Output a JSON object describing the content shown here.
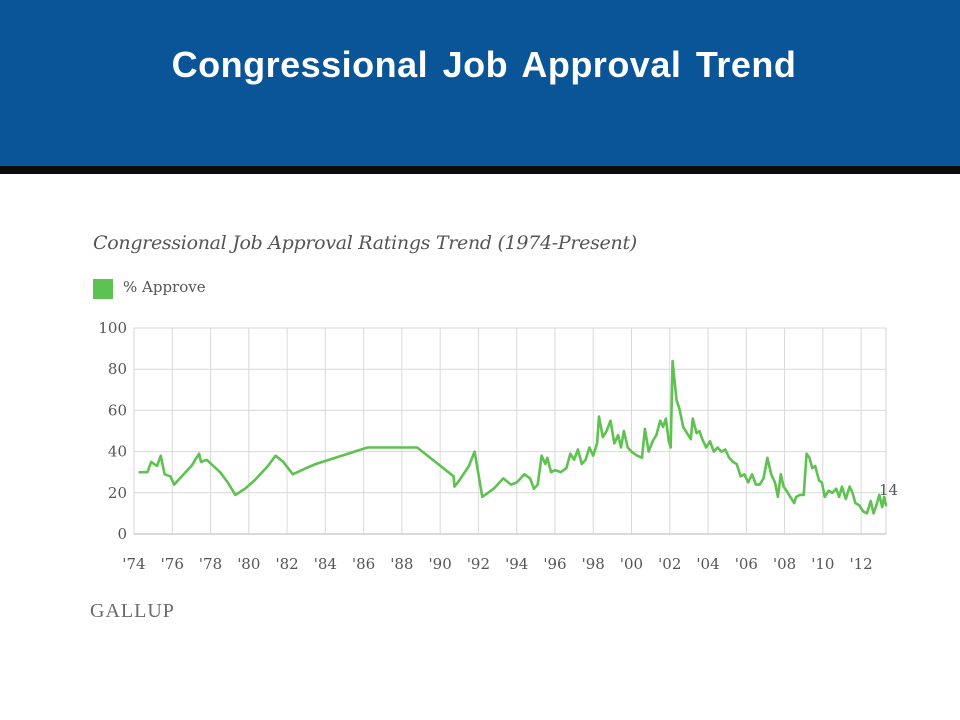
{
  "slide": {
    "title": "Congressional Job Approval Trend",
    "colors": {
      "banner": "#0a5597",
      "rule": "#0b0b0b"
    }
  },
  "logo": {
    "text": "GALLUP"
  },
  "chart_data": {
    "type": "line",
    "title": "Congressional Job Approval Ratings Trend (1974-Present)",
    "xlabel": "",
    "ylabel": "",
    "xlim": [
      1974,
      2013.3
    ],
    "ylim": [
      0,
      100
    ],
    "y_ticks": [
      0,
      20,
      40,
      60,
      80,
      100
    ],
    "x_ticks": [
      {
        "year": 1974,
        "label": "'74"
      },
      {
        "year": 1976,
        "label": "'76"
      },
      {
        "year": 1978,
        "label": "'78"
      },
      {
        "year": 1980,
        "label": "'80"
      },
      {
        "year": 1982,
        "label": "'82"
      },
      {
        "year": 1984,
        "label": "'84"
      },
      {
        "year": 1986,
        "label": "'86"
      },
      {
        "year": 1988,
        "label": "'88"
      },
      {
        "year": 1990,
        "label": "'90"
      },
      {
        "year": 1992,
        "label": "'92"
      },
      {
        "year": 1994,
        "label": "'94"
      },
      {
        "year": 1996,
        "label": "'96"
      },
      {
        "year": 1998,
        "label": "'98"
      },
      {
        "year": 2000,
        "label": "'00"
      },
      {
        "year": 2002,
        "label": "'02"
      },
      {
        "year": 2004,
        "label": "'04"
      },
      {
        "year": 2006,
        "label": "'06"
      },
      {
        "year": 2008,
        "label": "'08"
      },
      {
        "year": 2010,
        "label": "'10"
      },
      {
        "year": 2012,
        "label": "'12"
      }
    ],
    "grid": true,
    "legend_position": "top-left",
    "series": [
      {
        "name": "% Approve",
        "color": "#5ec251",
        "points": [
          [
            1974.3,
            30
          ],
          [
            1974.7,
            30
          ],
          [
            1974.9,
            35
          ],
          [
            1975.2,
            33
          ],
          [
            1975.4,
            38
          ],
          [
            1975.6,
            29
          ],
          [
            1975.9,
            28
          ],
          [
            1976.1,
            24
          ],
          [
            1976.5,
            28
          ],
          [
            1977.0,
            33
          ],
          [
            1977.4,
            39
          ],
          [
            1977.5,
            35
          ],
          [
            1977.8,
            36
          ],
          [
            1978.5,
            30
          ],
          [
            1978.9,
            25
          ],
          [
            1979.3,
            19
          ],
          [
            1979.8,
            22
          ],
          [
            1980.3,
            26
          ],
          [
            1981.0,
            33
          ],
          [
            1981.4,
            38
          ],
          [
            1981.8,
            35
          ],
          [
            1982.3,
            29
          ],
          [
            1983.0,
            32
          ],
          [
            1983.5,
            34
          ],
          [
            1986.2,
            42
          ],
          [
            1988.8,
            42
          ],
          [
            1990.7,
            28
          ],
          [
            1990.75,
            23
          ],
          [
            1991.0,
            26
          ],
          [
            1991.5,
            33
          ],
          [
            1991.8,
            40
          ],
          [
            1992.2,
            18
          ],
          [
            1992.8,
            22
          ],
          [
            1993.3,
            27
          ],
          [
            1993.7,
            24
          ],
          [
            1994.0,
            25
          ],
          [
            1994.4,
            29
          ],
          [
            1994.7,
            27
          ],
          [
            1994.9,
            22
          ],
          [
            1995.1,
            24
          ],
          [
            1995.3,
            38
          ],
          [
            1995.5,
            34
          ],
          [
            1995.6,
            37
          ],
          [
            1995.8,
            30
          ],
          [
            1996.0,
            31
          ],
          [
            1996.3,
            30
          ],
          [
            1996.6,
            32
          ],
          [
            1996.8,
            39
          ],
          [
            1997.0,
            36
          ],
          [
            1997.2,
            41
          ],
          [
            1997.4,
            34
          ],
          [
            1997.6,
            36
          ],
          [
            1997.8,
            42
          ],
          [
            1998.0,
            38
          ],
          [
            1998.2,
            44
          ],
          [
            1998.3,
            57
          ],
          [
            1998.5,
            47
          ],
          [
            1998.7,
            50
          ],
          [
            1998.9,
            55
          ],
          [
            1999.1,
            44
          ],
          [
            1999.3,
            48
          ],
          [
            1999.45,
            42
          ],
          [
            1999.6,
            50
          ],
          [
            1999.8,
            42
          ],
          [
            2000.0,
            40
          ],
          [
            2000.3,
            38
          ],
          [
            2000.55,
            37
          ],
          [
            2000.7,
            51
          ],
          [
            2000.9,
            40
          ],
          [
            2001.1,
            45
          ],
          [
            2001.3,
            48
          ],
          [
            2001.5,
            55
          ],
          [
            2001.65,
            52
          ],
          [
            2001.8,
            56
          ],
          [
            2001.95,
            45
          ],
          [
            2002.05,
            42
          ],
          [
            2002.15,
            84
          ],
          [
            2002.35,
            65
          ],
          [
            2002.5,
            61
          ],
          [
            2002.7,
            52
          ],
          [
            2002.9,
            49
          ],
          [
            2003.1,
            46
          ],
          [
            2003.2,
            56
          ],
          [
            2003.4,
            49
          ],
          [
            2003.55,
            50
          ],
          [
            2003.7,
            46
          ],
          [
            2003.9,
            42
          ],
          [
            2004.1,
            45
          ],
          [
            2004.3,
            40
          ],
          [
            2004.5,
            42
          ],
          [
            2004.7,
            40
          ],
          [
            2004.9,
            41
          ],
          [
            2005.1,
            37
          ],
          [
            2005.3,
            35
          ],
          [
            2005.5,
            34
          ],
          [
            2005.7,
            28
          ],
          [
            2005.9,
            29
          ],
          [
            2006.1,
            25
          ],
          [
            2006.3,
            29
          ],
          [
            2006.5,
            24
          ],
          [
            2006.7,
            24
          ],
          [
            2006.9,
            27
          ],
          [
            2007.1,
            37
          ],
          [
            2007.3,
            29
          ],
          [
            2007.5,
            25
          ],
          [
            2007.65,
            18
          ],
          [
            2007.8,
            29
          ],
          [
            2007.95,
            23
          ],
          [
            2008.1,
            21
          ],
          [
            2008.3,
            18
          ],
          [
            2008.5,
            15
          ],
          [
            2008.6,
            18
          ],
          [
            2008.8,
            19
          ],
          [
            2009.0,
            19
          ],
          [
            2009.15,
            39
          ],
          [
            2009.3,
            37
          ],
          [
            2009.45,
            32
          ],
          [
            2009.6,
            33
          ],
          [
            2009.8,
            26
          ],
          [
            2009.95,
            25
          ],
          [
            2010.1,
            18
          ],
          [
            2010.3,
            21
          ],
          [
            2010.5,
            20
          ],
          [
            2010.7,
            22
          ],
          [
            2010.85,
            18
          ],
          [
            2011.0,
            23
          ],
          [
            2011.2,
            17
          ],
          [
            2011.4,
            23
          ],
          [
            2011.55,
            20
          ],
          [
            2011.7,
            15
          ],
          [
            2011.9,
            14
          ],
          [
            2012.1,
            11
          ],
          [
            2012.3,
            10
          ],
          [
            2012.5,
            16
          ],
          [
            2012.65,
            10
          ],
          [
            2012.8,
            14
          ],
          [
            2012.95,
            19
          ],
          [
            2013.1,
            13
          ],
          [
            2013.2,
            18
          ],
          [
            2013.3,
            14
          ]
        ],
        "end_label": "14"
      }
    ]
  }
}
